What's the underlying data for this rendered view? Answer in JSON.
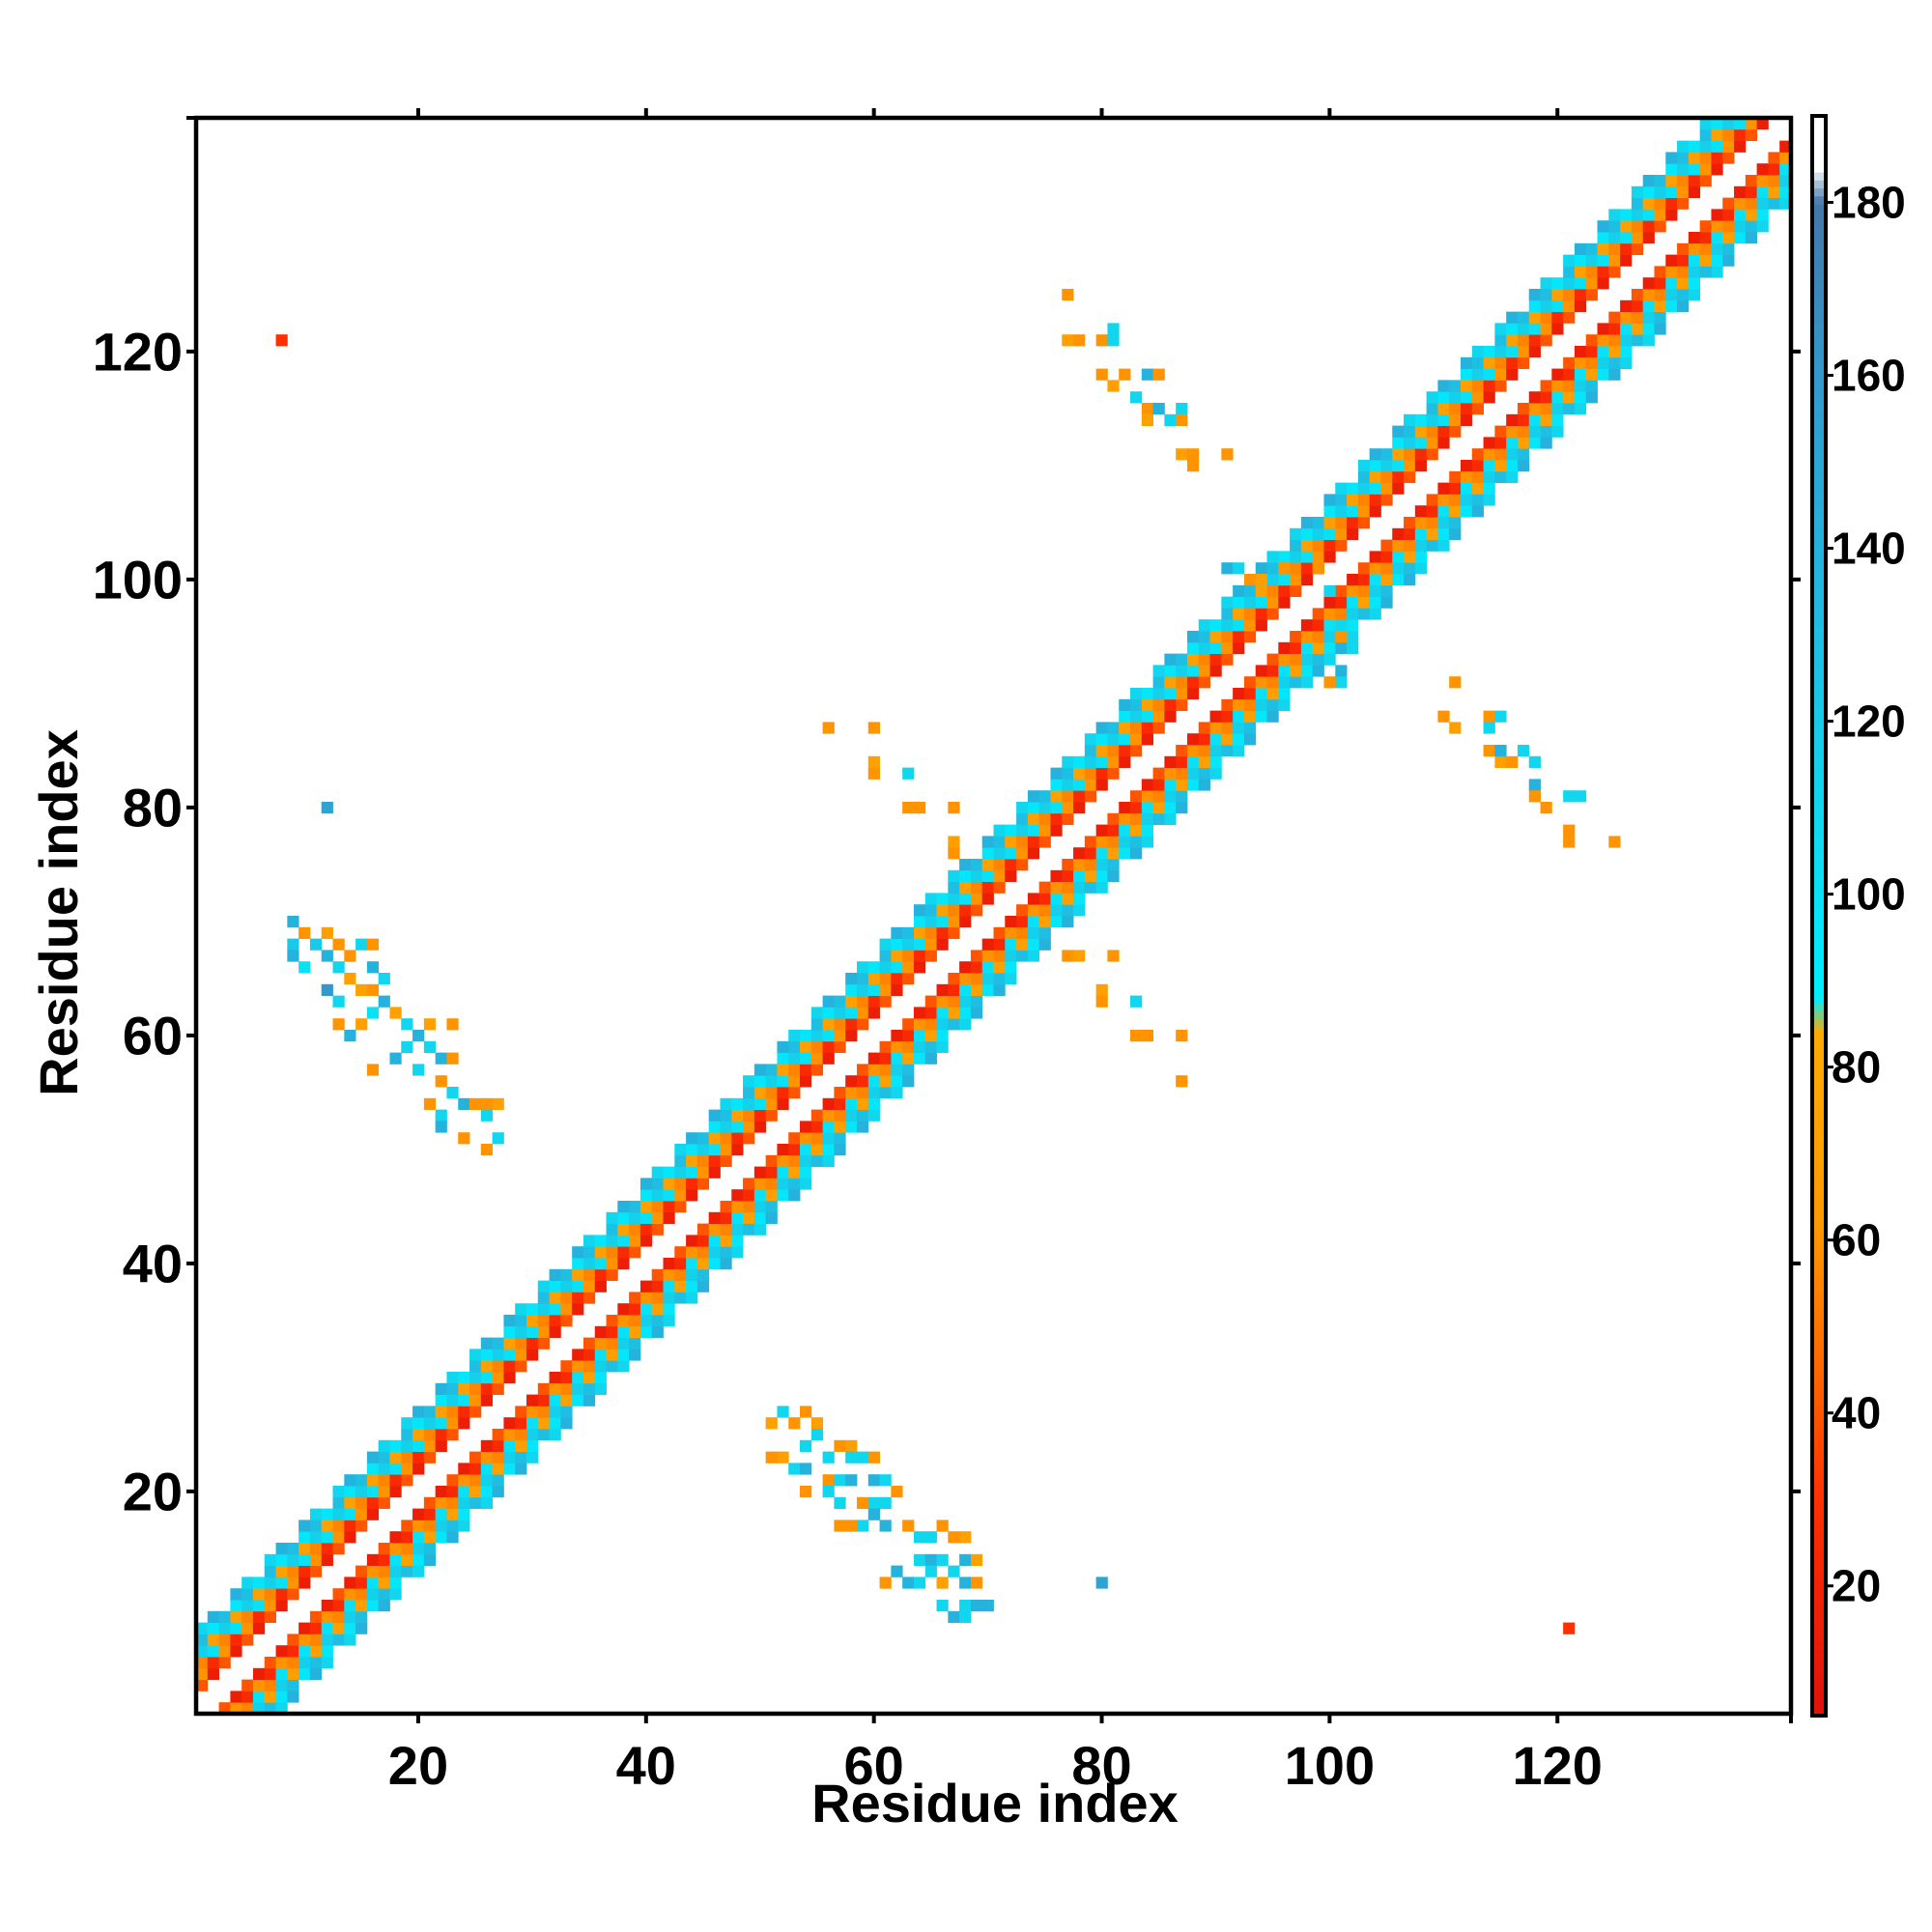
{
  "chart_data": {
    "type": "heatmap",
    "title": "",
    "xlabel": "Residue index",
    "ylabel": "Residue index",
    "xlim": [
      1,
      140
    ],
    "ylim": [
      1,
      140
    ],
    "x_ticks": [
      20,
      40,
      60,
      80,
      100,
      120
    ],
    "y_ticks": [
      20,
      40,
      60,
      80,
      100,
      120
    ],
    "colorbar": {
      "ticks": [
        20,
        40,
        60,
        80,
        100,
        120,
        140,
        160,
        180
      ],
      "range": [
        5,
        190
      ],
      "stops": [
        {
          "value": 5,
          "color": "#e0120a"
        },
        {
          "value": 30,
          "color": "#ff3000"
        },
        {
          "value": 45,
          "color": "#ff6600"
        },
        {
          "value": 62,
          "color": "#ff9900"
        },
        {
          "value": 84,
          "color": "#ffaa00"
        },
        {
          "value": 88,
          "color": "#00eeff"
        },
        {
          "value": 110,
          "color": "#11d6ee"
        },
        {
          "value": 135,
          "color": "#22b8e0"
        },
        {
          "value": 160,
          "color": "#3399cc"
        },
        {
          "value": 180,
          "color": "#4477aa"
        },
        {
          "value": 184,
          "color": "#ffffff"
        }
      ]
    },
    "grid": false,
    "diagonal_band": {
      "description_values": "contacts near the diagonal for |i-j| between 2 and 7",
      "min_offset": 2,
      "max_offset": 7
    },
    "off_diagonal_cells": [
      [
        8,
        121,
        30
      ],
      [
        12,
        80,
        150
      ],
      [
        9,
        70,
        140
      ],
      [
        9,
        68,
        120
      ],
      [
        10,
        69,
        60
      ],
      [
        9,
        67,
        140
      ],
      [
        10,
        66,
        100
      ],
      [
        11,
        68,
        120
      ],
      [
        12,
        69,
        70
      ],
      [
        12,
        67,
        140
      ],
      [
        13,
        68,
        60
      ],
      [
        13,
        66,
        110
      ],
      [
        12,
        64,
        160
      ],
      [
        13,
        63,
        110
      ],
      [
        14,
        65,
        70
      ],
      [
        14,
        67,
        60
      ],
      [
        15,
        68,
        110
      ],
      [
        16,
        68,
        60
      ],
      [
        16,
        66,
        140
      ],
      [
        15,
        64,
        70
      ],
      [
        16,
        64,
        60
      ],
      [
        17,
        65,
        110
      ],
      [
        17,
        63,
        140
      ],
      [
        16,
        62,
        100
      ],
      [
        15,
        61,
        70
      ],
      [
        14,
        60,
        140
      ],
      [
        13,
        61,
        60
      ],
      [
        18,
        62,
        70
      ],
      [
        19,
        61,
        110
      ],
      [
        20,
        60,
        140
      ],
      [
        19,
        59,
        110
      ],
      [
        18,
        58,
        140
      ],
      [
        16,
        57,
        60
      ],
      [
        21,
        61,
        70
      ],
      [
        21,
        59,
        110
      ],
      [
        22,
        58,
        140
      ],
      [
        23,
        58,
        60
      ],
      [
        23,
        61,
        60
      ],
      [
        20,
        57,
        110
      ],
      [
        22,
        56,
        60
      ],
      [
        23,
        55,
        110
      ],
      [
        24,
        54,
        140
      ],
      [
        25,
        54,
        60
      ],
      [
        26,
        54,
        60
      ],
      [
        26,
        53,
        110
      ],
      [
        27,
        54,
        70
      ],
      [
        21,
        54,
        60
      ],
      [
        22,
        53,
        110
      ],
      [
        22,
        52,
        140
      ],
      [
        24,
        51,
        60
      ],
      [
        26,
        50,
        60
      ],
      [
        27,
        51,
        110
      ],
      [
        51,
        26,
        70
      ],
      [
        52,
        27,
        110
      ],
      [
        53,
        26,
        60
      ],
      [
        54,
        27,
        60
      ],
      [
        55,
        26,
        70
      ],
      [
        54,
        24,
        110
      ],
      [
        55,
        25,
        110
      ],
      [
        52,
        23,
        70
      ],
      [
        53,
        22,
        110
      ],
      [
        54,
        22,
        140
      ],
      [
        56,
        23,
        110
      ],
      [
        57,
        24,
        60
      ],
      [
        58,
        24,
        70
      ],
      [
        58,
        23,
        110
      ],
      [
        59,
        23,
        110
      ],
      [
        60,
        23,
        60
      ],
      [
        56,
        21,
        60
      ],
      [
        57,
        21,
        110
      ],
      [
        58,
        21,
        140
      ],
      [
        60,
        21,
        140
      ],
      [
        61,
        21,
        110
      ],
      [
        54,
        20,
        60
      ],
      [
        56,
        20,
        110
      ],
      [
        57,
        19,
        110
      ],
      [
        59,
        19,
        60
      ],
      [
        60,
        19,
        110
      ],
      [
        61,
        19,
        110
      ],
      [
        62,
        20,
        60
      ],
      [
        57,
        17,
        60
      ],
      [
        58,
        17,
        60
      ],
      [
        59,
        17,
        110
      ],
      [
        60,
        18,
        140
      ],
      [
        61,
        17,
        140
      ],
      [
        63,
        17,
        60
      ],
      [
        64,
        16,
        110
      ],
      [
        65,
        16,
        110
      ],
      [
        66,
        17,
        60
      ],
      [
        67,
        16,
        60
      ],
      [
        68,
        16,
        70
      ],
      [
        64,
        14,
        110
      ],
      [
        65,
        14,
        140
      ],
      [
        66,
        14,
        110
      ],
      [
        68,
        14,
        140
      ],
      [
        69,
        14,
        70
      ],
      [
        62,
        13,
        140
      ],
      [
        63,
        12,
        140
      ],
      [
        65,
        13,
        110
      ],
      [
        66,
        12,
        70
      ],
      [
        67,
        13,
        110
      ],
      [
        68,
        12,
        140
      ],
      [
        69,
        12,
        60
      ],
      [
        66,
        10,
        110
      ],
      [
        68,
        10,
        110
      ],
      [
        69,
        10,
        140
      ],
      [
        70,
        10,
        140
      ],
      [
        67,
        9,
        140
      ],
      [
        68,
        9,
        110
      ],
      [
        61,
        12,
        60
      ],
      [
        64,
        12,
        110
      ],
      [
        51,
        23,
        60
      ],
      [
        80,
        12,
        150
      ],
      [
        121,
        8,
        30
      ],
      [
        56,
        87,
        60
      ],
      [
        60,
        87,
        60
      ],
      [
        60,
        84,
        70
      ],
      [
        60,
        83,
        60
      ],
      [
        63,
        83,
        110
      ],
      [
        63,
        80,
        60
      ],
      [
        64,
        80,
        60
      ],
      [
        67,
        80,
        60
      ],
      [
        67,
        77,
        70
      ],
      [
        67,
        76,
        60
      ],
      [
        77,
        67,
        60
      ],
      [
        78,
        67,
        70
      ],
      [
        81,
        67,
        60
      ],
      [
        80,
        64,
        70
      ],
      [
        80,
        63,
        60
      ],
      [
        83,
        63,
        110
      ],
      [
        83,
        60,
        60
      ],
      [
        84,
        60,
        60
      ],
      [
        87,
        60,
        60
      ],
      [
        87,
        56,
        60
      ],
      [
        77,
        125,
        60
      ],
      [
        77,
        121,
        70
      ],
      [
        78,
        121,
        60
      ],
      [
        80,
        121,
        60
      ],
      [
        81,
        121,
        110
      ],
      [
        81,
        122,
        110
      ],
      [
        80,
        118,
        60
      ],
      [
        81,
        117,
        70
      ],
      [
        82,
        118,
        60
      ],
      [
        84,
        118,
        140
      ],
      [
        85,
        118,
        60
      ],
      [
        83,
        116,
        110
      ],
      [
        84,
        115,
        60
      ],
      [
        85,
        115,
        140
      ],
      [
        86,
        114,
        110
      ],
      [
        84,
        114,
        70
      ],
      [
        87,
        115,
        110
      ],
      [
        87,
        114,
        60
      ],
      [
        87,
        111,
        70
      ],
      [
        88,
        111,
        60
      ],
      [
        88,
        110,
        60
      ],
      [
        91,
        111,
        60
      ],
      [
        111,
        91,
        60
      ],
      [
        110,
        88,
        60
      ],
      [
        111,
        87,
        70
      ],
      [
        114,
        88,
        60
      ],
      [
        115,
        88,
        110
      ],
      [
        114,
        87,
        110
      ],
      [
        114,
        85,
        60
      ],
      [
        115,
        84,
        70
      ],
      [
        116,
        84,
        60
      ],
      [
        115,
        85,
        140
      ],
      [
        117,
        85,
        110
      ],
      [
        118,
        84,
        110
      ],
      [
        118,
        82,
        140
      ],
      [
        118,
        81,
        60
      ],
      [
        119,
        80,
        60
      ],
      [
        121,
        81,
        110
      ],
      [
        122,
        81,
        110
      ],
      [
        121,
        78,
        60
      ],
      [
        121,
        77,
        60
      ],
      [
        125,
        77,
        60
      ],
      [
        91,
        101,
        140
      ],
      [
        92,
        101,
        110
      ],
      [
        93,
        100,
        60
      ],
      [
        94,
        100,
        70
      ],
      [
        95,
        102,
        110
      ],
      [
        96,
        101,
        60
      ],
      [
        99,
        101,
        60
      ],
      [
        100,
        99,
        110
      ],
      [
        101,
        96,
        110
      ],
      [
        101,
        95,
        60
      ],
      [
        102,
        94,
        110
      ],
      [
        100,
        93,
        110
      ],
      [
        101,
        92,
        140
      ],
      [
        101,
        91,
        110
      ],
      [
        100,
        91,
        60
      ]
    ]
  }
}
